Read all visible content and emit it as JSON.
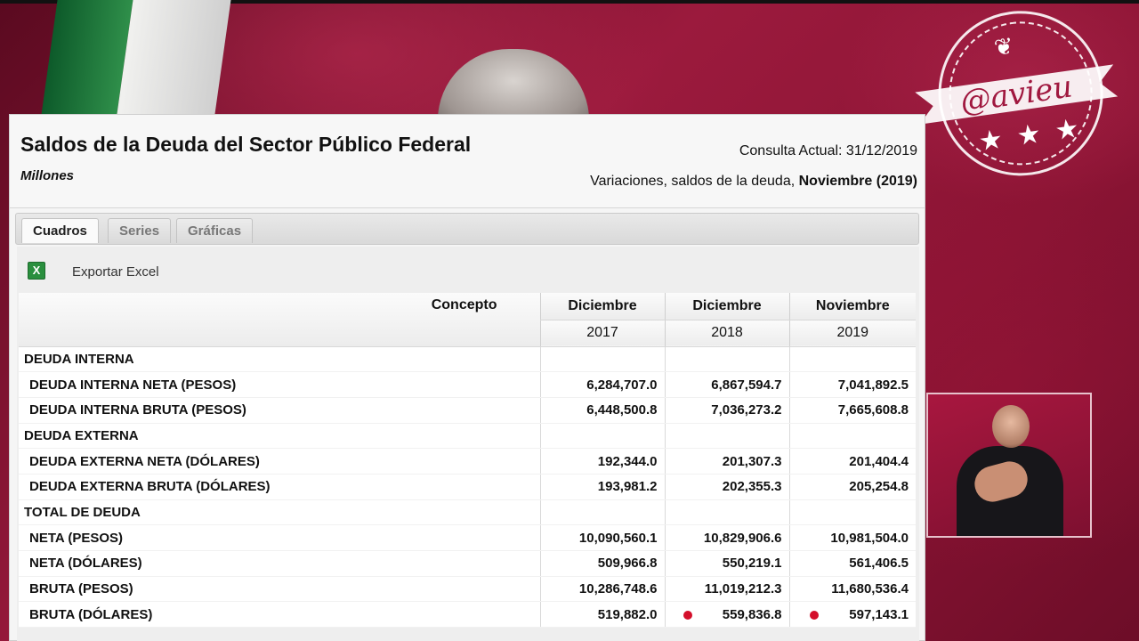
{
  "stamp": {
    "handle": "@avieu"
  },
  "panel": {
    "title": "Saldos de la Deuda del Sector Público Federal",
    "units": "Millones",
    "consulta": "Consulta Actual: 31/12/2019",
    "variaciones_prefix": "Variaciones, saldos de la deuda, ",
    "variaciones_period": "Noviembre (2019)",
    "tabs": [
      {
        "label": "Cuadros",
        "active": true
      },
      {
        "label": "Series",
        "active": false
      },
      {
        "label": "Gráficas",
        "active": false
      }
    ],
    "export_label": "Exportar Excel",
    "table": {
      "concept_header": "Concepto",
      "columns": [
        {
          "month": "Diciembre",
          "year": "2017"
        },
        {
          "month": "Diciembre",
          "year": "2018"
        },
        {
          "month": "Noviembre",
          "year": "2019"
        }
      ],
      "rows": [
        {
          "label": "DEUDA INTERNA",
          "section": true,
          "values": [
            "",
            "",
            ""
          ]
        },
        {
          "label": "DEUDA INTERNA NETA (PESOS)",
          "section": false,
          "values": [
            "6,284,707.0",
            "6,867,594.7",
            "7,041,892.5"
          ]
        },
        {
          "label": "DEUDA INTERNA BRUTA (PESOS)",
          "section": false,
          "values": [
            "6,448,500.8",
            "7,036,273.2",
            "7,665,608.8"
          ]
        },
        {
          "label": "DEUDA EXTERNA",
          "section": true,
          "values": [
            "",
            "",
            ""
          ]
        },
        {
          "label": "DEUDA EXTERNA NETA (DÓLARES)",
          "section": false,
          "values": [
            "192,344.0",
            "201,307.3",
            "201,404.4"
          ]
        },
        {
          "label": "DEUDA EXTERNA BRUTA (DÓLARES)",
          "section": false,
          "values": [
            "193,981.2",
            "202,355.3",
            "205,254.8"
          ]
        },
        {
          "label": "TOTAL DE DEUDA",
          "section": true,
          "values": [
            "",
            "",
            ""
          ]
        },
        {
          "label": "NETA (PESOS)",
          "section": false,
          "values": [
            "10,090,560.1",
            "10,829,906.6",
            "10,981,504.0"
          ]
        },
        {
          "label": "NETA (DÓLARES)",
          "section": false,
          "values": [
            "509,966.8",
            "550,219.1",
            "561,406.5"
          ]
        },
        {
          "label": "BRUTA (PESOS)",
          "section": false,
          "values": [
            "10,286,748.6",
            "11,019,212.3",
            "11,680,536.4"
          ]
        },
        {
          "label": "BRUTA (DÓLARES)",
          "section": false,
          "values": [
            "519,882.0",
            "559,836.8",
            "597,143.1"
          ],
          "marked": [
            false,
            true,
            true
          ]
        }
      ]
    }
  },
  "colors": {
    "brand_background": "#8a1232",
    "marker_dot": "#d40f2b",
    "excel_green": "#2a8f3e"
  },
  "icons": {
    "export": "excel-icon",
    "marker": "red-dot"
  }
}
